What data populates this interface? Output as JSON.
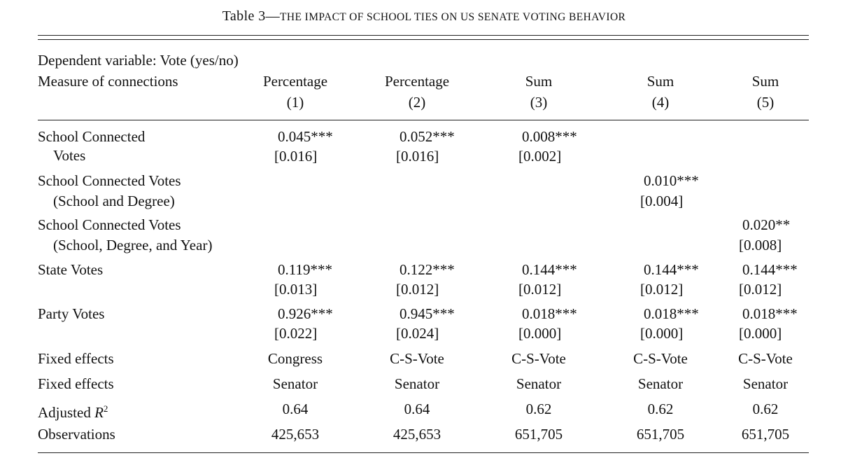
{
  "table": {
    "title_prefix": "Table 3—",
    "title_main": "The Impact of School Ties on US Senate Voting Behavior",
    "dependent_variable": "Dependent variable: Vote (yes/no)",
    "measure_label": "Measure of connections",
    "columns": [
      {
        "measure": "Percentage",
        "number": "(1)"
      },
      {
        "measure": "Percentage",
        "number": "(2)"
      },
      {
        "measure": "Sum",
        "number": "(3)"
      },
      {
        "measure": "Sum",
        "number": "(4)"
      },
      {
        "measure": "Sum",
        "number": "(5)"
      }
    ],
    "rows": {
      "school_connected": {
        "label_line1": "School Connected",
        "label_line2": "Votes",
        "coef": [
          "0.045***",
          "0.052***",
          "0.008***"
        ],
        "se": [
          "[0.016]",
          "[0.016]",
          "[0.002]"
        ]
      },
      "school_degree": {
        "label_line1": "School Connected Votes",
        "label_line2": "(School and Degree)",
        "coef": "0.010***",
        "se": "[0.004]"
      },
      "school_degree_year": {
        "label_line1": "School Connected Votes",
        "label_line2": "(School, Degree, and Year)",
        "coef": "0.020**",
        "se": "[0.008]"
      },
      "state_votes": {
        "label": "State Votes",
        "coef": [
          "0.119***",
          "0.122***",
          "0.144***",
          "0.144***",
          "0.144***"
        ],
        "se": [
          "[0.013]",
          "[0.012]",
          "[0.012]",
          "[0.012]",
          "[0.012]"
        ]
      },
      "party_votes": {
        "label": "Party Votes",
        "coef": [
          "0.926***",
          "0.945***",
          "0.018***",
          "0.018***",
          "0.018***"
        ],
        "se": [
          "[0.022]",
          "[0.024]",
          "[0.000]",
          "[0.000]",
          "[0.000]"
        ]
      },
      "fixed_effects_1": {
        "label": "Fixed effects",
        "values": [
          "Congress",
          "C-S-Vote",
          "C-S-Vote",
          "C-S-Vote",
          "C-S-Vote"
        ]
      },
      "fixed_effects_2": {
        "label": "Fixed effects",
        "values": [
          "Senator",
          "Senator",
          "Senator",
          "Senator",
          "Senator"
        ]
      },
      "adjusted_r2": {
        "label_text": "Adjusted ",
        "label_symbol": "R",
        "label_sup": "2",
        "values": [
          "0.64",
          "0.64",
          "0.62",
          "0.62",
          "0.62"
        ]
      },
      "observations": {
        "label": "Observations",
        "values": [
          "425,653",
          "425,653",
          "651,705",
          "651,705",
          "651,705"
        ]
      }
    }
  }
}
